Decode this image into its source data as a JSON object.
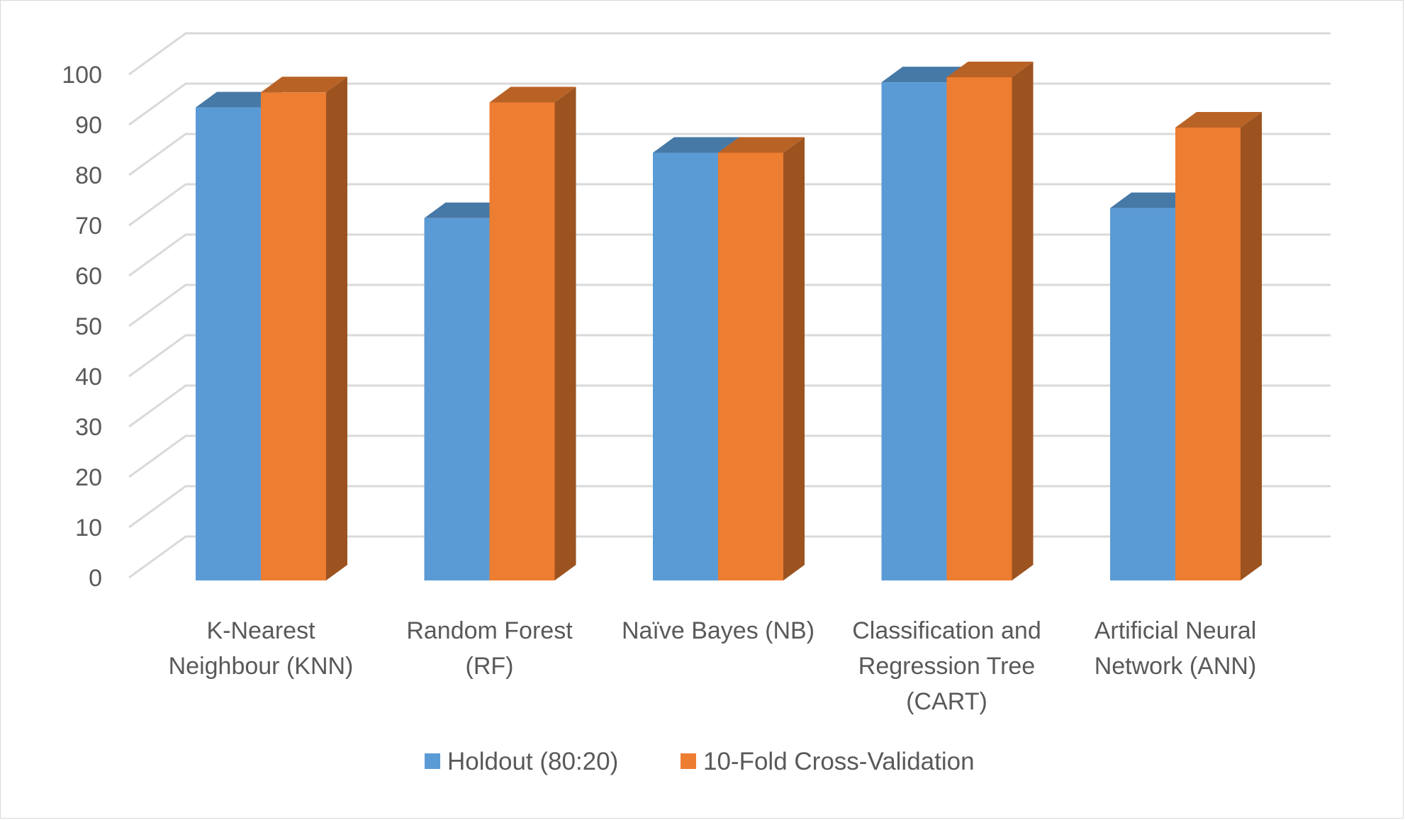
{
  "chart_data": {
    "type": "bar",
    "title": "",
    "xlabel": "",
    "ylabel": "",
    "ylim": [
      0,
      100
    ],
    "y_ticks": [
      "0",
      "10",
      "20",
      "30",
      "40",
      "50",
      "60",
      "70",
      "80",
      "90",
      "100"
    ],
    "categories": [
      [
        "K-Nearest",
        "Neighbour (KNN)"
      ],
      [
        "Random Forest",
        "(RF)"
      ],
      [
        "Naïve Bayes (NB)"
      ],
      [
        "Classification and",
        "Regression Tree",
        "(CART)"
      ],
      [
        "Artificial Neural",
        "Network (ANN)"
      ]
    ],
    "series": [
      {
        "name": "Holdout (80:20)",
        "values": [
          94,
          72,
          85,
          99,
          74
        ],
        "color": "#5b9bd5"
      },
      {
        "name": "10-Fold Cross-Validation",
        "values": [
          97,
          95,
          85,
          100,
          90
        ],
        "color": "#ed7d31"
      }
    ],
    "grid": true,
    "style": "3d-clustered-column",
    "legend_position": "bottom"
  }
}
